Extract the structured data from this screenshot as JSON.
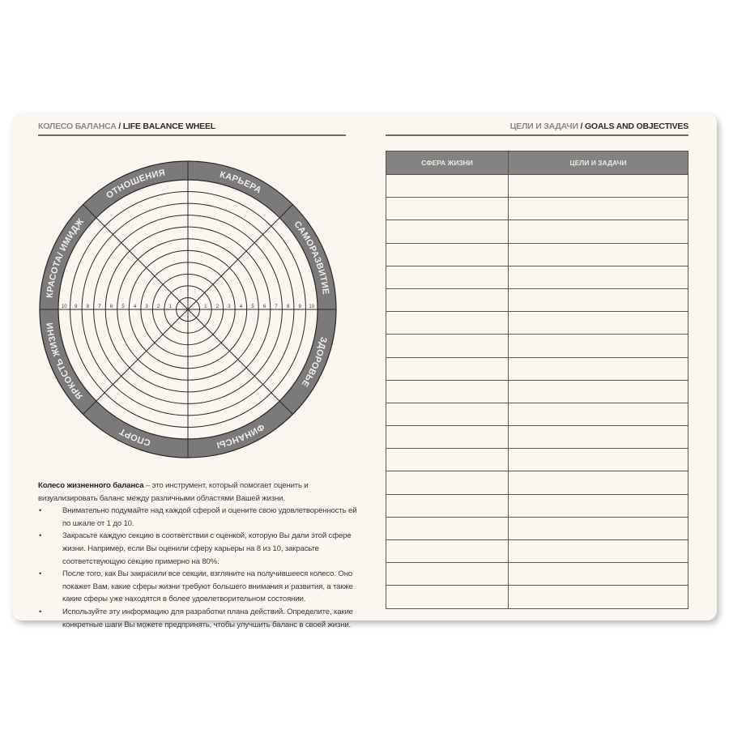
{
  "left_page": {
    "header_ru": "КОЛЕСО БАЛАНСА",
    "header_sep": " / ",
    "header_en": "LIFE BALANCE WHEEL"
  },
  "right_page": {
    "header_ru": "ЦЕЛИ И ЗАДАЧИ",
    "header_sep": " / ",
    "header_en": "GOALS AND OBJECTIVES"
  },
  "wheel": {
    "sectors": [
      "КАРЬЕРА",
      "САМОРАЗВИТИЕ",
      "ЗДОРОВЬЕ",
      "ФИНАНСЫ",
      "СПОРТ",
      "ЯРКОСТЬ ЖИЗНИ",
      "КРАСОТА/ ИМИДЖ",
      "ОТНОШЕНИЯ"
    ],
    "scale": [
      "1",
      "2",
      "3",
      "4",
      "5",
      "6",
      "7",
      "8",
      "9",
      "10"
    ],
    "ring_color": "#7b797a",
    "line_color": "#2a2826"
  },
  "description": {
    "lead_bold": "Колесо жизненного баланса",
    "lead_text": " – это инструмент, который помогает оценить и визуализировать баланс между различными областями Вашей жизни.",
    "bullets": [
      "Внимательно подумайте над каждой сферой и оцените свою удовлетворенность ей по шкале от 1 до 10.",
      "Закрасьте каждую секцию в соответствии с оценкой, которую Вы дали этой сфере жизни. Например, если Вы оценили сферу карьеры на 8 из 10, закрасьте соответствующую секцию примерно на 80%.",
      "После того, как Вы закрасили все секции, взгляните на получившееся колесо. Оно покажет Вам, какие сферы жизни требуют большего внимания и развития, а также какие сферы уже находятся в более удовлетворительном состоянии.",
      "Используйте эту информацию для разработки плана действий. Определите, какие конкретные шаги Вы можете предпринять, чтобы улучшить баланс в своей жизни."
    ]
  },
  "goals_table": {
    "columns": [
      "СФЕРА ЖИЗНИ",
      "ЦЕЛИ И ЗАДАЧИ"
    ],
    "row_count": 19
  }
}
